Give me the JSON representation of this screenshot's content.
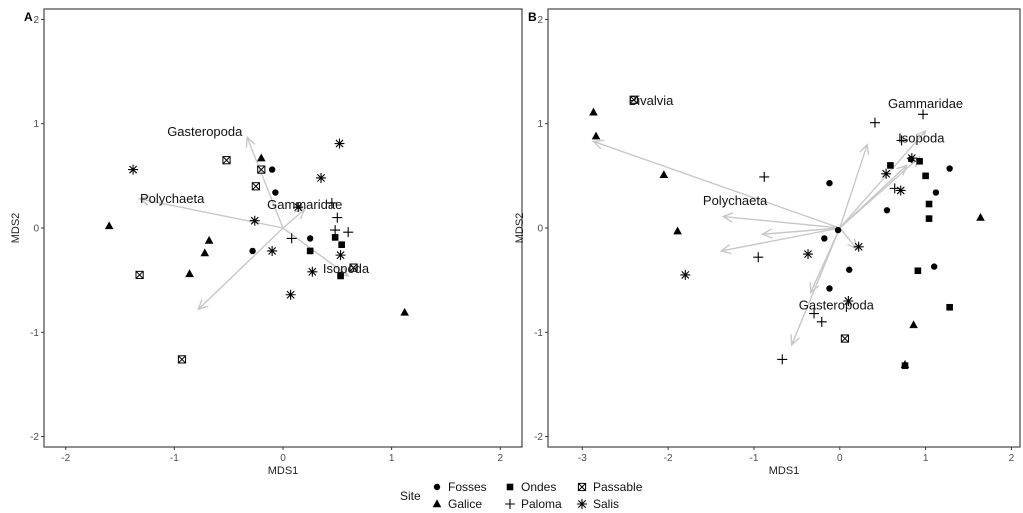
{
  "chart_data": [
    {
      "type": "scatter",
      "panel_label": "A",
      "xlabel": "MDS1",
      "ylabel": "MDS2",
      "xlim": [
        -2.2,
        2.2
      ],
      "ylim": [
        -2.1,
        2.1
      ],
      "xticks": [
        -2,
        -1,
        0,
        1,
        2
      ],
      "yticks": [
        -2,
        -1,
        0,
        1,
        2
      ],
      "grid": false,
      "points": [
        {
          "site": "Fosses",
          "x": -0.1,
          "y": 0.56
        },
        {
          "site": "Fosses",
          "x": -0.07,
          "y": 0.34
        },
        {
          "site": "Fosses",
          "x": -0.28,
          "y": -0.22
        },
        {
          "site": "Fosses",
          "x": 0.25,
          "y": -0.1
        },
        {
          "site": "Fosses",
          "x": 0.53,
          "y": -0.45
        },
        {
          "site": "Galice",
          "x": -1.6,
          "y": 0.02
        },
        {
          "site": "Galice",
          "x": -0.2,
          "y": 0.67
        },
        {
          "site": "Galice",
          "x": -0.68,
          "y": -0.12
        },
        {
          "site": "Galice",
          "x": -0.72,
          "y": -0.24
        },
        {
          "site": "Galice",
          "x": -0.86,
          "y": -0.44
        },
        {
          "site": "Galice",
          "x": 1.12,
          "y": -0.81
        },
        {
          "site": "Ondes",
          "x": 0.25,
          "y": -0.22
        },
        {
          "site": "Ondes",
          "x": 0.48,
          "y": -0.09
        },
        {
          "site": "Ondes",
          "x": 0.54,
          "y": -0.16
        },
        {
          "site": "Ondes",
          "x": 0.53,
          "y": -0.46
        },
        {
          "site": "Paloma",
          "x": 0.45,
          "y": 0.24
        },
        {
          "site": "Paloma",
          "x": 0.5,
          "y": 0.1
        },
        {
          "site": "Paloma",
          "x": 0.48,
          "y": -0.02
        },
        {
          "site": "Paloma",
          "x": 0.6,
          "y": -0.04
        },
        {
          "site": "Paloma",
          "x": 0.08,
          "y": -0.1
        },
        {
          "site": "Passable",
          "x": -0.52,
          "y": 0.65
        },
        {
          "site": "Passable",
          "x": -0.2,
          "y": 0.56
        },
        {
          "site": "Passable",
          "x": -0.25,
          "y": 0.4
        },
        {
          "site": "Passable",
          "x": -1.32,
          "y": -0.45
        },
        {
          "site": "Passable",
          "x": -0.93,
          "y": -1.26
        },
        {
          "site": "Passable",
          "x": 0.65,
          "y": -0.38
        },
        {
          "site": "Salis",
          "x": -1.38,
          "y": 0.56
        },
        {
          "site": "Salis",
          "x": 0.52,
          "y": 0.81
        },
        {
          "site": "Salis",
          "x": 0.35,
          "y": 0.48
        },
        {
          "site": "Salis",
          "x": -0.26,
          "y": 0.07
        },
        {
          "site": "Salis",
          "x": 0.14,
          "y": 0.2
        },
        {
          "site": "Salis",
          "x": -0.1,
          "y": -0.22
        },
        {
          "site": "Salis",
          "x": 0.27,
          "y": -0.42
        },
        {
          "site": "Salis",
          "x": 0.53,
          "y": -0.26
        },
        {
          "site": "Salis",
          "x": 0.07,
          "y": -0.64
        }
      ],
      "vectors": [
        {
          "label": "Gasteropoda",
          "x": -0.33,
          "y": 0.87,
          "label_x": -0.72,
          "label_y": 0.88
        },
        {
          "label": "Polychaeta",
          "x": -1.32,
          "y": 0.28,
          "label_x": -1.02,
          "label_y": 0.24
        },
        {
          "label": "Gammaridae",
          "x": 0.2,
          "y": 0.18,
          "label_x": 0.2,
          "label_y": 0.18
        },
        {
          "label": "Isopoda",
          "x": 0.6,
          "y": -0.46,
          "label_x": 0.58,
          "label_y": -0.43
        },
        {
          "label": "",
          "x": -0.78,
          "y": -0.78
        }
      ]
    },
    {
      "type": "scatter",
      "panel_label": "B",
      "xlabel": "MDS1",
      "ylabel": "MDS2",
      "xlim": [
        -3.4,
        2.1
      ],
      "ylim": [
        -2.1,
        2.1
      ],
      "xticks": [
        -3,
        -2,
        -1,
        0,
        1,
        2
      ],
      "yticks": [
        -2,
        -1,
        0,
        1,
        2
      ],
      "grid": false,
      "points": [
        {
          "site": "Fosses",
          "x": -0.12,
          "y": 0.43
        },
        {
          "site": "Fosses",
          "x": -0.18,
          "y": -0.1
        },
        {
          "site": "Fosses",
          "x": -0.12,
          "y": -0.58
        },
        {
          "site": "Fosses",
          "x": 0.11,
          "y": -0.4
        },
        {
          "site": "Fosses",
          "x": -0.02,
          "y": -0.02
        },
        {
          "site": "Fosses",
          "x": 0.55,
          "y": 0.17
        },
        {
          "site": "Fosses",
          "x": 1.12,
          "y": 0.34
        },
        {
          "site": "Fosses",
          "x": 1.28,
          "y": 0.57
        },
        {
          "site": "Fosses",
          "x": 1.1,
          "y": -0.37
        },
        {
          "site": "Fosses",
          "x": 0.83,
          "y": 0.66
        },
        {
          "site": "Galice",
          "x": -2.87,
          "y": 1.11
        },
        {
          "site": "Galice",
          "x": -2.84,
          "y": 0.88
        },
        {
          "site": "Galice",
          "x": -2.05,
          "y": 0.51
        },
        {
          "site": "Galice",
          "x": -1.89,
          "y": -0.03
        },
        {
          "site": "Galice",
          "x": 0.86,
          "y": -0.93
        },
        {
          "site": "Galice",
          "x": 0.76,
          "y": -1.31
        },
        {
          "site": "Galice",
          "x": 1.64,
          "y": 0.1
        },
        {
          "site": "Ondes",
          "x": 0.59,
          "y": 0.6
        },
        {
          "site": "Ondes",
          "x": 0.93,
          "y": 0.64
        },
        {
          "site": "Ondes",
          "x": 1.0,
          "y": 0.5
        },
        {
          "site": "Ondes",
          "x": 1.04,
          "y": 0.23
        },
        {
          "site": "Ondes",
          "x": 1.04,
          "y": 0.09
        },
        {
          "site": "Ondes",
          "x": 0.91,
          "y": -0.41
        },
        {
          "site": "Ondes",
          "x": 1.28,
          "y": -0.76
        },
        {
          "site": "Ondes",
          "x": 0.76,
          "y": -1.32
        },
        {
          "site": "Paloma",
          "x": -0.88,
          "y": 0.49
        },
        {
          "site": "Paloma",
          "x": -0.95,
          "y": -0.28
        },
        {
          "site": "Paloma",
          "x": -0.3,
          "y": -0.82
        },
        {
          "site": "Paloma",
          "x": -0.21,
          "y": -0.9
        },
        {
          "site": "Paloma",
          "x": -0.67,
          "y": -1.26
        },
        {
          "site": "Paloma",
          "x": 0.41,
          "y": 1.01
        },
        {
          "site": "Paloma",
          "x": 0.97,
          "y": 1.09
        },
        {
          "site": "Paloma",
          "x": 0.72,
          "y": 0.84
        },
        {
          "site": "Paloma",
          "x": 0.64,
          "y": 0.38
        },
        {
          "site": "Passable",
          "x": -2.4,
          "y": 1.23
        },
        {
          "site": "Passable",
          "x": 0.06,
          "y": -1.06
        },
        {
          "site": "Salis",
          "x": -1.8,
          "y": -0.45
        },
        {
          "site": "Salis",
          "x": -0.37,
          "y": -0.25
        },
        {
          "site": "Salis",
          "x": 0.22,
          "y": -0.18
        },
        {
          "site": "Salis",
          "x": 0.54,
          "y": 0.52
        },
        {
          "site": "Salis",
          "x": 0.71,
          "y": 0.36
        },
        {
          "site": "Salis",
          "x": 0.84,
          "y": 0.67
        },
        {
          "site": "Salis",
          "x": 0.1,
          "y": -0.7
        }
      ],
      "vectors": [
        {
          "label": "Bivalvia",
          "x": -2.87,
          "y": 0.83,
          "label_x": -2.2,
          "label_y": 1.18
        },
        {
          "label": "Gammaridae",
          "x": 1.0,
          "y": 0.93,
          "label_x": 1.0,
          "label_y": 1.15
        },
        {
          "label": "Isopoda",
          "x": 0.93,
          "y": 0.68,
          "label_x": 0.95,
          "label_y": 0.82
        },
        {
          "label": "Polychaeta",
          "x": -1.36,
          "y": 0.11,
          "label_x": -1.22,
          "label_y": 0.22
        },
        {
          "label": "Gasteropoda",
          "x": -0.34,
          "y": -0.62,
          "label_x": -0.04,
          "label_y": -0.78
        },
        {
          "label": "",
          "x": 0.32,
          "y": 0.8
        },
        {
          "label": "",
          "x": -1.38,
          "y": -0.22
        },
        {
          "label": "",
          "x": -0.9,
          "y": -0.06
        },
        {
          "label": "",
          "x": -0.56,
          "y": -1.12
        },
        {
          "label": "",
          "x": 0.2,
          "y": -0.2
        },
        {
          "label": "",
          "x": 0.78,
          "y": 0.6
        }
      ]
    }
  ],
  "legend": {
    "title": "Site",
    "position": "bottom",
    "items": [
      {
        "label": "Fosses",
        "shape": "circle"
      },
      {
        "label": "Ondes",
        "shape": "square"
      },
      {
        "label": "Passable",
        "shape": "boxed-x"
      },
      {
        "label": "Galice",
        "shape": "triangle"
      },
      {
        "label": "Paloma",
        "shape": "plus"
      },
      {
        "label": "Salis",
        "shape": "asterisk"
      }
    ]
  },
  "colors": {
    "points": "#000000",
    "vectors": "#c8c8c8",
    "panel_border": "#222222"
  }
}
